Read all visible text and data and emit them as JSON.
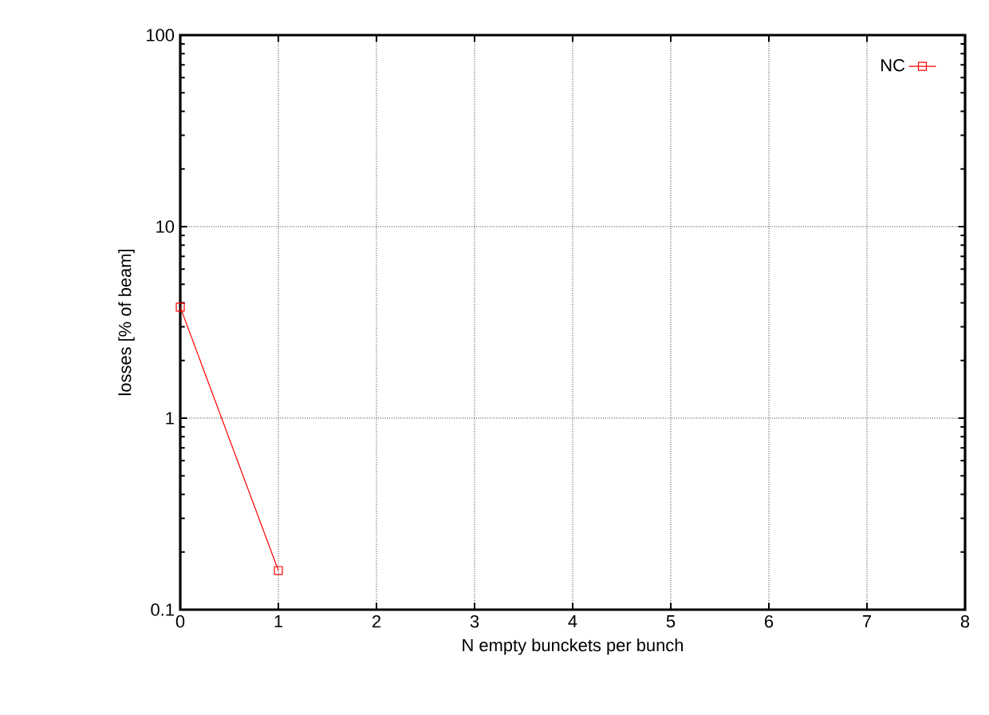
{
  "chart_data": {
    "type": "line",
    "xlabel": "N empty bunckets per bunch",
    "ylabel": "losses [% of beam]",
    "x": [
      0,
      1
    ],
    "series": [
      {
        "name": "NC",
        "color": "#ff0000",
        "values": [
          3.8,
          0.16
        ]
      }
    ],
    "xlim": [
      0,
      8
    ],
    "ylim": [
      0.1,
      100
    ],
    "xticks": [
      0,
      1,
      2,
      3,
      4,
      5,
      6,
      7,
      8
    ],
    "yticks": [
      0.1,
      1,
      10,
      100
    ],
    "log": "y",
    "grid": true,
    "legend": "top right",
    "marker": "square",
    "line_style": "solid"
  }
}
